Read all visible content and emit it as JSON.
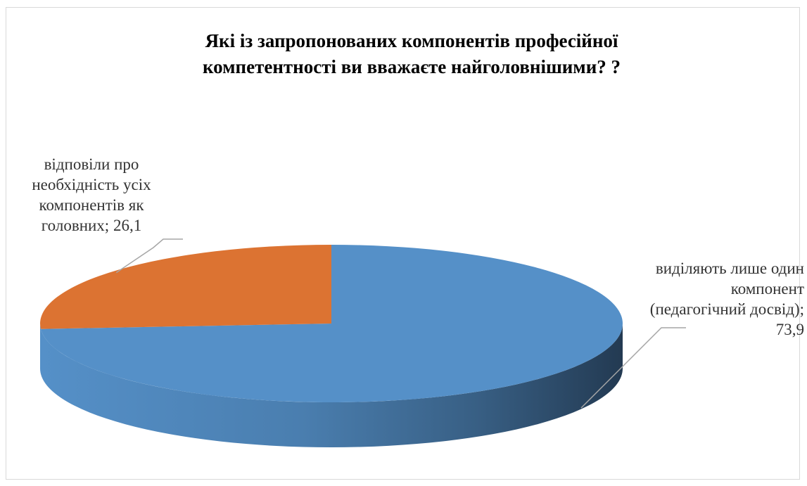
{
  "chart_data": {
    "type": "pie",
    "title": "Які із запропонованих компонентів професійної компетентності ви вважаєте найголовнішими? ?",
    "slices": [
      {
        "label": "виділяють лише один компонент (педагогічний досвід)",
        "value": 73.9,
        "color": "#5590c8",
        "side_dark": "#233a52",
        "data_label": "виділяють лише один компонент (педагогічний досвід); 73,9"
      },
      {
        "label": "відповіли про необхідність усіх компонентів як головних",
        "value": 26.1,
        "color": "#dc7332",
        "data_label": "відповіли про необхідність усіх компонентів як головних; 26,1"
      }
    ],
    "style": "3d",
    "legend": "none",
    "data_labels": "outside-with-leader-lines"
  }
}
